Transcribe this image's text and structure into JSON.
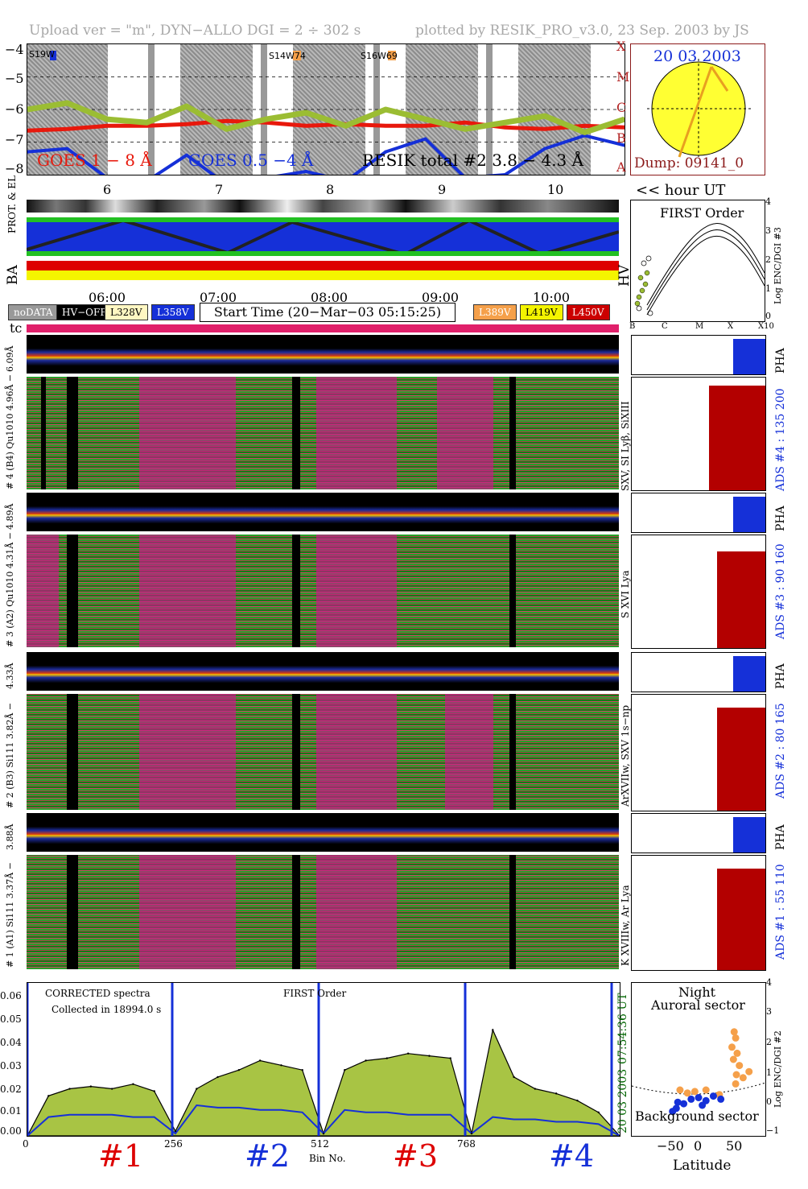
{
  "header": {
    "left": "Upload ver = \"m\", DYN−ALLO DGI =   2 ÷ 302 s",
    "right": "plotted by RESIK_PRO_v3.0, 23 Sep. 2003 by JS"
  },
  "goes_panel": {
    "y_ticks": [
      "−4",
      "−5",
      "−6",
      "−7",
      "−8"
    ],
    "flare_classes": [
      "X",
      "M",
      "C",
      "B",
      "A"
    ],
    "ar_labels": [
      "S19W",
      "S14W74",
      "S16W69"
    ],
    "legend_goes18": "GOES 1 − 8 Å",
    "legend_goes054": "GOES 0.5 −4 Å",
    "legend_resik": "RESIK total #2  3.8 − 4.3 Å",
    "colors": {
      "goes18": "#e8180c",
      "goes054": "#1530d8",
      "resik_day": "#9bbd33",
      "resik_flare": "#f5a04a"
    }
  },
  "sun_panel": {
    "date": "20 03 2003",
    "dump": "Dump: 09141_0"
  },
  "hour_axis": {
    "hours": [
      "6",
      "7",
      "8",
      "9",
      "10"
    ],
    "label": "<< hour UT"
  },
  "orbit_labels": {
    "prot_el": "PROT. & EL",
    "ba": "BA",
    "hv": "HV"
  },
  "time_axis": {
    "ticks": [
      "06:00",
      "07:00",
      "08:00",
      "09:00",
      "10:00"
    ]
  },
  "legend": {
    "nodata": "noDATA",
    "hvoff": "HV−OFF",
    "v328": "L328V",
    "v358": "L358V",
    "start_time": "Start Time (20−Mar−03 05:15:25)",
    "v389": "L389V",
    "v419": "L419V",
    "v450": "L450V"
  },
  "first_order": {
    "title": "FIRST Order",
    "ylabel": "Log ENC/DGI #3",
    "y_ticks": [
      "4",
      "3",
      "2",
      "1",
      "0"
    ],
    "x_ticks": [
      "B",
      "C",
      "M",
      "X",
      "X10"
    ]
  },
  "tc_label": "tc",
  "channels": [
    {
      "pha_label": "6.09Å",
      "spec_label": "# 4 (B4) Qu1010 4.96Å −",
      "line_label": "SXV, SI Lyβ, SiXIII",
      "ads": "ADS #4 :   135 200",
      "pha": "PHA"
    },
    {
      "pha_label": "4.89Å",
      "spec_label": "# 3 (A2) Qu1010 4.31Å −",
      "line_label": "S XVI Lya",
      "ads": "ADS #3 :   90 160",
      "pha": "PHA"
    },
    {
      "pha_label": "4.33Å",
      "spec_label": "# 2 (B3) Si111 3.82Å −",
      "line_label": "ArXVIIw, SXV 1s−np",
      "ads": "ADS #2 :   80 165",
      "pha": "PHA"
    },
    {
      "pha_label": "3.88Å",
      "spec_label": "# 1 (A1) Si111 3.37Å −",
      "line_label": "K XVIIIw, Ar Lya",
      "ads": "ADS #1 :   55 110",
      "pha": "PHA"
    }
  ],
  "bottom_spectrum": {
    "annotation1": "CORRECTED spectra",
    "annotation2": "Collected in 18994.0 s",
    "annotation3": "FIRST Order",
    "date_label": "20 03 2003",
    "time_label": "07:54:36 UT",
    "y_ticks": [
      "0.06",
      "0.05",
      "0.04",
      "0.03",
      "0.02",
      "0.01",
      "0.00"
    ],
    "x_ticks": [
      "0",
      "256",
      "512",
      "768"
    ],
    "xlabel": "Bin No.",
    "channel_names": [
      "#1",
      "#2",
      "#3",
      "#4"
    ]
  },
  "latitude_panel": {
    "title1": "Night",
    "title2": "Auroral sector",
    "bottom_label": "Background sector",
    "ylabel": "Log ENC/DGI #2",
    "xlabel": "Latitude",
    "x_ticks": [
      "−50",
      "0",
      "50"
    ],
    "y_ticks": [
      "4",
      "3",
      "2",
      "1",
      "0",
      "−1"
    ]
  },
  "chart_data": [
    {
      "type": "line",
      "ylim": [
        -8,
        -4
      ],
      "ylabel_ticks": [
        "−4",
        "−5",
        "−6",
        "−7",
        "−8"
      ],
      "series": [
        {
          "name": "GOES 1 − 8 Å",
          "values": [
            -6.65,
            -6.6,
            -6.5,
            -6.5,
            -6.45,
            -6.35,
            -6.4,
            -6.5,
            -6.45,
            -6.5,
            -6.5,
            -6.4,
            -6.55,
            -6.6,
            -6.5,
            -6.55
          ]
        },
        {
          "name": "GOES 0.5 −4 Å",
          "values": [
            -7.3,
            -7.2,
            -8.1,
            -8.2,
            -7.4,
            -8.3,
            -8.1,
            -7.9,
            -8.2,
            -7.3,
            -6.9,
            -8.1,
            -8.0,
            -7.2,
            -6.8,
            -7.1
          ]
        },
        {
          "name": "RESIK total #2  3.8 − 4.3 Å",
          "values": [
            -6.0,
            -5.8,
            -6.3,
            -6.4,
            -5.9,
            -6.6,
            -6.3,
            -6.1,
            -6.5,
            -6.0,
            -6.3,
            -6.6,
            -6.4,
            -6.2,
            -6.7,
            -6.3
          ]
        }
      ]
    },
    {
      "type": "area",
      "xlabel": "Bin No.",
      "x_ticks": [
        0,
        256,
        512,
        768
      ],
      "ylim": [
        0,
        0.065
      ],
      "series": [
        {
          "values": [
            0.0,
            0.017,
            0.02,
            0.021,
            0.02,
            0.022,
            0.019,
            0.002,
            0.02,
            0.025,
            0.028,
            0.032,
            0.03,
            0.028,
            0.001,
            0.028,
            0.032,
            0.033,
            0.035,
            0.034,
            0.033,
            0.001,
            0.045,
            0.025,
            0.02,
            0.018,
            0.015,
            0.01,
            0.0
          ]
        },
        {
          "values": [
            0.0,
            0.008,
            0.009,
            0.009,
            0.009,
            0.008,
            0.008,
            0.001,
            0.013,
            0.012,
            0.012,
            0.011,
            0.011,
            0.01,
            0.001,
            0.011,
            0.01,
            0.01,
            0.009,
            0.009,
            0.009,
            0.001,
            0.008,
            0.007,
            0.007,
            0.006,
            0.006,
            0.005,
            0.0
          ]
        }
      ]
    },
    {
      "type": "scatter",
      "xlabel": "Latitude",
      "ylim": [
        -1,
        4
      ],
      "xlim": [
        -90,
        90
      ],
      "series": [
        {
          "x": [
            48,
            50,
            45,
            52,
            47,
            55,
            51,
            60,
            68,
            50,
            -25,
            -15,
            -5,
            10,
            28
          ],
          "y": [
            2.4,
            2.2,
            1.9,
            1.7,
            1.5,
            1.3,
            1.0,
            0.9,
            1.1,
            0.7,
            0.5,
            0.4,
            0.45,
            0.5,
            0.35
          ]
        },
        {
          "x": [
            -35,
            -28,
            -20,
            -10,
            0,
            10,
            20,
            30,
            -30,
            5
          ],
          "y": [
            -0.2,
            0.1,
            0.05,
            0.2,
            0.25,
            0.15,
            0.3,
            0.2,
            -0.1,
            0.0
          ]
        }
      ]
    }
  ]
}
